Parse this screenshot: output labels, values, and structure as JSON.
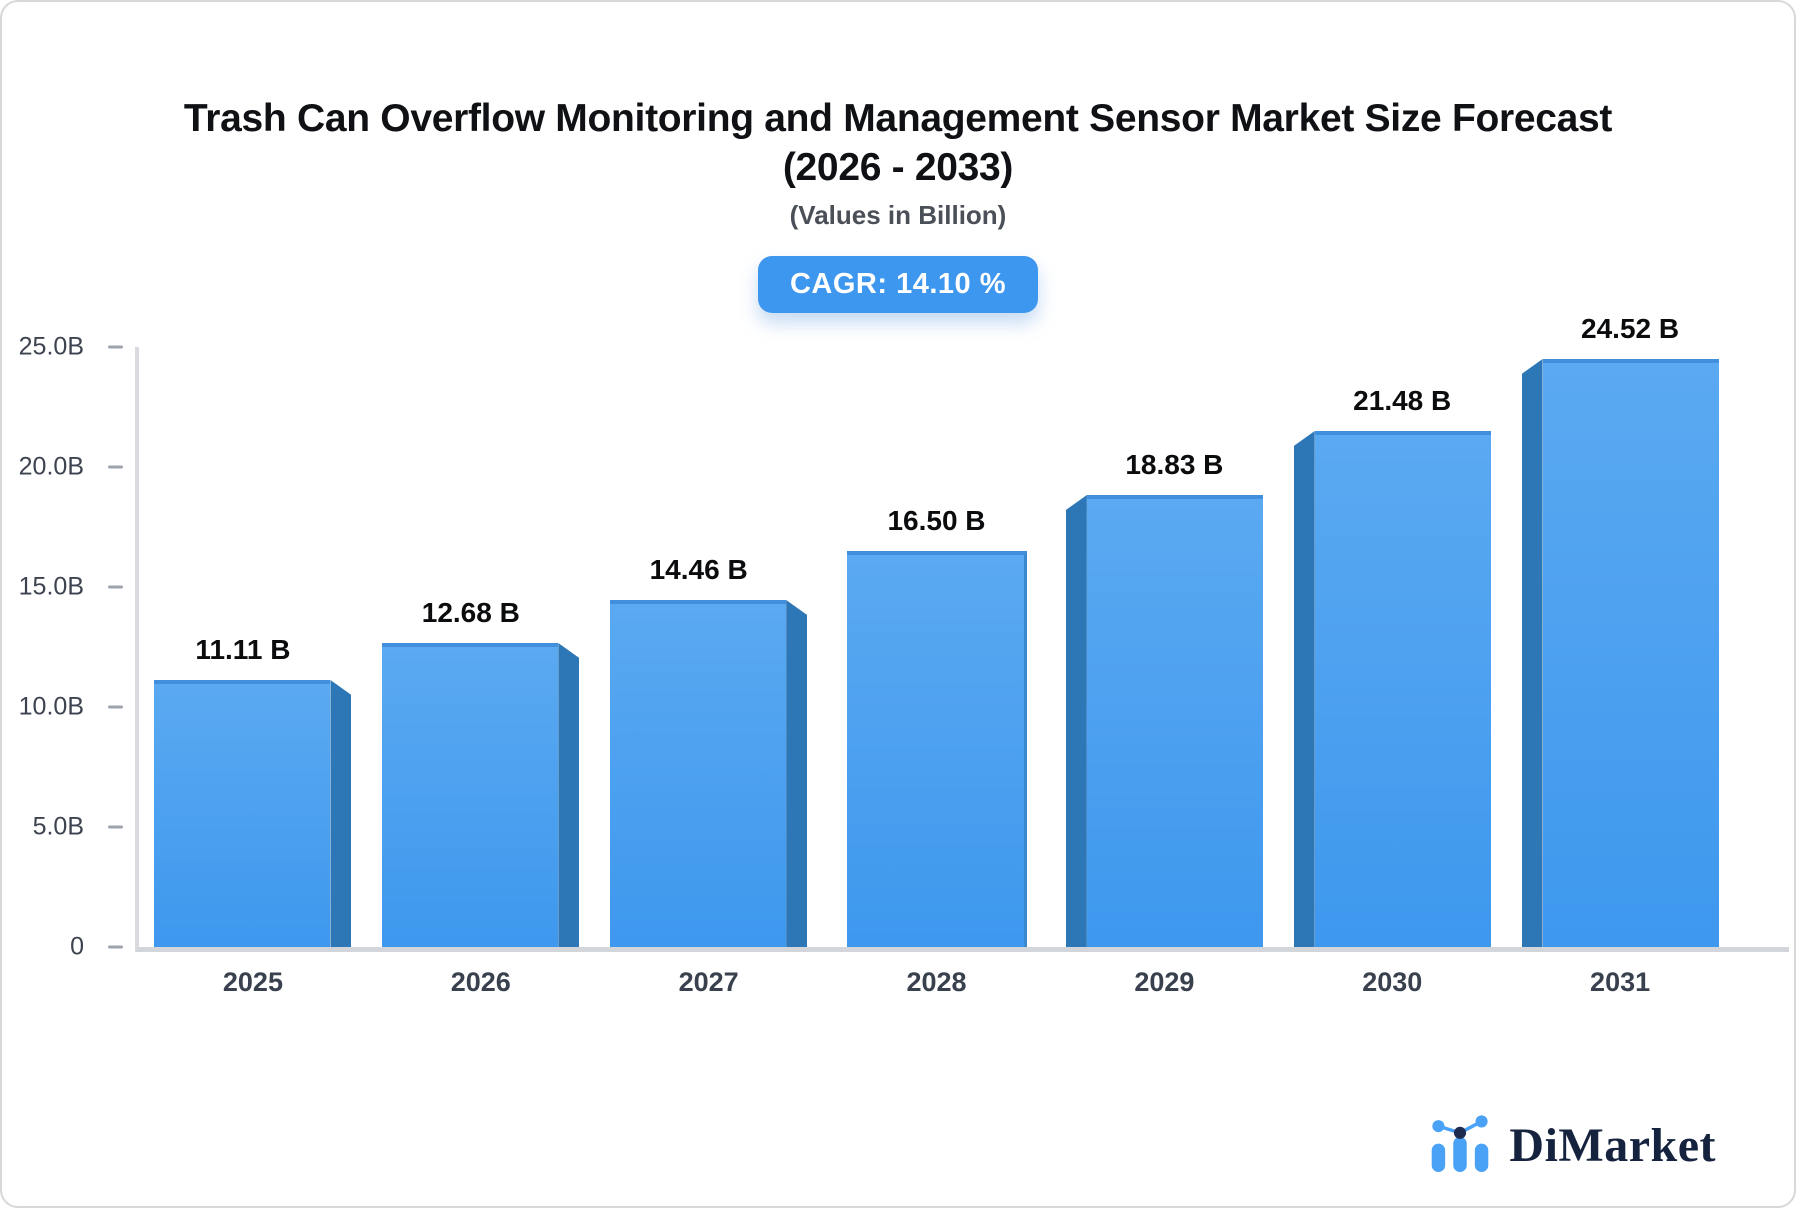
{
  "header": {
    "title_line1": "Trash Can Overflow Monitoring and Management Sensor Market Size Forecast",
    "title_line2": "(2026 - 2033)",
    "subtitle": "(Values in Billion)",
    "cagr_label": "CAGR: 14.10 %"
  },
  "chart_data": {
    "type": "bar",
    "title": "Trash Can Overflow Monitoring and Management Sensor Market Size Forecast (2026 - 2033)",
    "subtitle": "(Values in Billion)",
    "annotation": "CAGR: 14.10 %",
    "categories": [
      "2025",
      "2026",
      "2027",
      "2028",
      "2029",
      "2030",
      "2031"
    ],
    "values": [
      11.11,
      12.68,
      14.46,
      16.5,
      18.83,
      21.48,
      24.52
    ],
    "value_labels": [
      "11.11 B",
      "12.68 B",
      "14.46 B",
      "16.50 B",
      "18.83 B",
      "21.48 B",
      "24.52 B"
    ],
    "bar_sides": [
      "right",
      "right",
      "right",
      "none",
      "left",
      "left",
      "left"
    ],
    "xlabel": "",
    "ylabel": "",
    "ylim": [
      0,
      25
    ],
    "yticks": [
      0,
      5,
      10,
      15,
      20,
      25
    ],
    "ytick_labels": [
      "0",
      "5.0B",
      "10.0B",
      "15.0B",
      "20.0B",
      "25.0B"
    ],
    "grid": false,
    "legend": false,
    "colors": {
      "bar_face_top": "#5aa9f1",
      "bar_face_bottom": "#3e98ee",
      "bar_side": "#2e77b7",
      "badge_bg": "#3e97ef",
      "axis": "#d2d5da"
    }
  },
  "brand": {
    "name": "DiMarket",
    "blue": "#4aa2f6",
    "navy": "#1d2b4f"
  }
}
